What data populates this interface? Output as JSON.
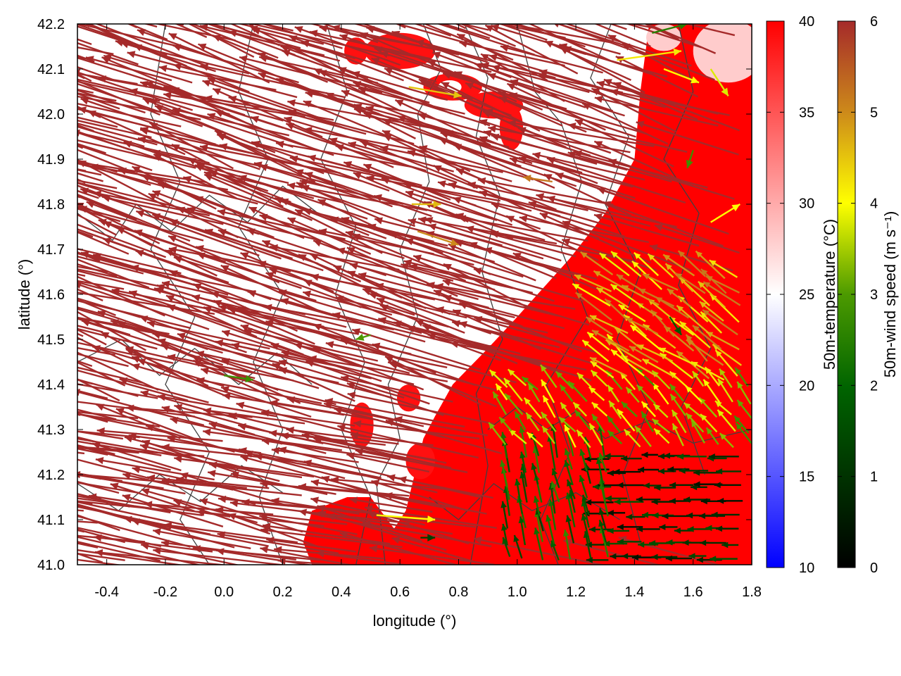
{
  "chart_data": {
    "type": "heatmap",
    "title": "",
    "xlabel": "longitude (°)",
    "ylabel": "latitude (°)",
    "xlim": [
      -0.5,
      1.8
    ],
    "ylim": [
      41.0,
      42.2
    ],
    "x_ticks": [
      "-0.4",
      "-0.2",
      "0.0",
      "0.2",
      "0.4",
      "0.6",
      "0.8",
      "1.0",
      "1.2",
      "1.4",
      "1.6",
      "1.8"
    ],
    "x_tick_values": [
      -0.4,
      -0.2,
      0.0,
      0.2,
      0.4,
      0.6,
      0.8,
      1.0,
      1.2,
      1.4,
      1.6,
      1.8
    ],
    "y_ticks": [
      "41.0",
      "41.1",
      "41.2",
      "41.3",
      "41.4",
      "41.5",
      "41.6",
      "41.7",
      "41.8",
      "41.9",
      "42.0",
      "42.1",
      "42.2"
    ],
    "y_tick_values": [
      41.0,
      41.1,
      41.2,
      41.3,
      41.4,
      41.5,
      41.6,
      41.7,
      41.8,
      41.9,
      42.0,
      42.1,
      42.2
    ],
    "grid": false,
    "temperature_colorbar": {
      "label": "50m-temperature (°C)",
      "range": [
        10,
        40
      ],
      "ticks": [
        "10",
        "15",
        "20",
        "25",
        "30",
        "35",
        "40"
      ],
      "tick_values": [
        10,
        15,
        20,
        25,
        30,
        35,
        40
      ],
      "colors": [
        "#0000ff",
        "#ffffff",
        "#ff0000"
      ]
    },
    "wind_colorbar": {
      "label": "50m-wind speed (m s⁻¹)",
      "range": [
        0,
        6
      ],
      "ticks": [
        "0",
        "1",
        "2",
        "3",
        "4",
        "5",
        "6"
      ],
      "tick_values": [
        0,
        1,
        2,
        3,
        4,
        5,
        6
      ],
      "colors": [
        "#000000",
        "#006400",
        "#ffff00",
        "#a52a2a"
      ]
    },
    "warm_region_polygon": [
      [
        1.8,
        41.0
      ],
      [
        1.8,
        42.2
      ],
      [
        1.45,
        42.2
      ],
      [
        1.42,
        42.05
      ],
      [
        1.4,
        41.9
      ],
      [
        1.3,
        41.78
      ],
      [
        1.18,
        41.68
      ],
      [
        1.0,
        41.55
      ],
      [
        0.9,
        41.48
      ],
      [
        0.78,
        41.4
      ],
      [
        0.72,
        41.33
      ],
      [
        0.68,
        41.28
      ],
      [
        0.65,
        41.2
      ],
      [
        0.62,
        41.12
      ],
      [
        0.58,
        41.08
      ],
      [
        0.5,
        41.15
      ],
      [
        0.42,
        41.15
      ],
      [
        0.3,
        41.12
      ],
      [
        0.27,
        41.05
      ],
      [
        0.3,
        41.0
      ]
    ],
    "warm_patches": [
      {
        "lon": 0.6,
        "lat": 42.14,
        "rlon": 0.12,
        "rlat": 0.04
      },
      {
        "lon": 0.78,
        "lat": 42.06,
        "rlon": 0.1,
        "rlat": 0.03
      },
      {
        "lon": 0.92,
        "lat": 42.02,
        "rlon": 0.1,
        "rlat": 0.03
      },
      {
        "lon": 0.98,
        "lat": 41.97,
        "rlon": 0.04,
        "rlat": 0.05
      },
      {
        "lon": 0.47,
        "lat": 41.31,
        "rlon": 0.04,
        "rlat": 0.05
      },
      {
        "lon": 0.63,
        "lat": 41.37,
        "rlon": 0.04,
        "rlat": 0.03
      },
      {
        "lon": 0.67,
        "lat": 41.23,
        "rlon": 0.05,
        "rlat": 0.04
      },
      {
        "lon": 0.45,
        "lat": 42.14,
        "rlon": 0.04,
        "rlat": 0.03
      }
    ],
    "hot_spots": [
      {
        "lon": 1.72,
        "lat": 42.14,
        "rlon": 0.12,
        "rlat": 0.07
      },
      {
        "lon": 1.5,
        "lat": 42.17,
        "rlon": 0.06,
        "rlat": 0.03
      }
    ],
    "cool_patch": {
      "lon": 0.77,
      "lat": 42.06,
      "rlon": 0.04,
      "rlat": 0.015
    },
    "wind_field": {
      "description_units": "arrow lengths in degrees; speed in m s-1",
      "westerly_regime_speed": 6,
      "land_breeze_regime": [
        {
          "lon_min": 1.3,
          "lon_max": 1.8,
          "lat_min": 41.0,
          "lat_max": 41.25,
          "u": -0.08,
          "v": 0.0,
          "speed": 1.0
        },
        {
          "lon_min": 0.95,
          "lon_max": 1.3,
          "lat_min": 41.0,
          "lat_max": 41.25,
          "u": -0.02,
          "v": 0.06,
          "speed": 2.0
        },
        {
          "lon_min": 0.95,
          "lon_max": 1.8,
          "lat_min": 41.25,
          "lat_max": 41.4,
          "u": -0.05,
          "v": 0.04,
          "speed": 3.5
        },
        {
          "lon_min": 1.3,
          "lon_max": 1.8,
          "lat_min": 41.4,
          "lat_max": 41.65,
          "u": -0.1,
          "v": 0.05,
          "speed": 4.5
        }
      ],
      "isolated_arrows": [
        {
          "lon": 0.0,
          "lat": 41.42,
          "u": 0.1,
          "v": -0.01,
          "speed": 2.8
        },
        {
          "lon": 0.5,
          "lat": 41.51,
          "u": -0.05,
          "v": -0.01,
          "speed": 3.0
        },
        {
          "lon": 0.67,
          "lat": 41.06,
          "u": 0.05,
          "v": 0.0,
          "speed": 1.3
        },
        {
          "lon": 0.52,
          "lat": 41.11,
          "u": 0.2,
          "v": -0.01,
          "speed": 4.0
        },
        {
          "lon": 0.66,
          "lat": 41.74,
          "u": 0.14,
          "v": -0.03,
          "speed": 5.0
        },
        {
          "lon": 0.64,
          "lat": 41.8,
          "u": 0.1,
          "v": 0.0,
          "speed": 4.6
        },
        {
          "lon": 0.63,
          "lat": 42.06,
          "u": 0.18,
          "v": -0.02,
          "speed": 4.5
        },
        {
          "lon": 1.34,
          "lat": 42.12,
          "u": 0.22,
          "v": 0.02,
          "speed": 4.2
        },
        {
          "lon": 1.5,
          "lat": 42.1,
          "u": 0.12,
          "v": -0.03,
          "speed": 4.0
        },
        {
          "lon": 1.66,
          "lat": 42.1,
          "u": 0.06,
          "v": -0.06,
          "speed": 3.8
        },
        {
          "lon": 1.46,
          "lat": 42.18,
          "u": 0.12,
          "v": 0.02,
          "speed": 2.5
        },
        {
          "lon": 1.66,
          "lat": 41.76,
          "u": 0.1,
          "v": 0.04,
          "speed": 4.0
        },
        {
          "lon": 1.6,
          "lat": 41.92,
          "u": -0.02,
          "v": -0.04,
          "speed": 2.8
        },
        {
          "lon": 1.12,
          "lat": 41.85,
          "u": -0.1,
          "v": 0.01,
          "speed": 5.2
        },
        {
          "lon": 1.52,
          "lat": 41.55,
          "u": 0.04,
          "v": -0.04,
          "speed": 1.8
        }
      ]
    },
    "contours": [
      [
        [
          -0.2,
          42.2
        ],
        [
          -0.25,
          42.0
        ],
        [
          -0.15,
          41.85
        ],
        [
          -0.25,
          41.7
        ],
        [
          -0.1,
          41.55
        ],
        [
          -0.2,
          41.4
        ],
        [
          -0.05,
          41.25
        ],
        [
          -0.15,
          41.1
        ],
        [
          -0.05,
          41.0
        ]
      ],
      [
        [
          0.1,
          42.2
        ],
        [
          0.05,
          42.05
        ],
        [
          0.15,
          41.9
        ],
        [
          0.05,
          41.75
        ],
        [
          0.2,
          41.6
        ],
        [
          0.1,
          41.45
        ],
        [
          0.2,
          41.3
        ],
        [
          0.12,
          41.15
        ],
        [
          0.2,
          41.0
        ]
      ],
      [
        [
          0.35,
          42.2
        ],
        [
          0.42,
          42.05
        ],
        [
          0.33,
          41.9
        ],
        [
          0.45,
          41.75
        ],
        [
          0.38,
          41.6
        ],
        [
          0.48,
          41.45
        ],
        [
          0.4,
          41.3
        ],
        [
          0.5,
          41.15
        ],
        [
          0.45,
          41.0
        ]
      ],
      [
        [
          0.68,
          42.2
        ],
        [
          0.74,
          42.1
        ],
        [
          0.66,
          42.0
        ],
        [
          0.7,
          41.85
        ],
        [
          0.6,
          41.7
        ],
        [
          0.66,
          41.55
        ],
        [
          0.56,
          41.4
        ],
        [
          0.6,
          41.28
        ],
        [
          0.52,
          41.18
        ],
        [
          0.55,
          41.0
        ]
      ],
      [
        [
          0.82,
          42.2
        ],
        [
          0.9,
          42.08
        ],
        [
          0.86,
          41.95
        ],
        [
          0.94,
          41.82
        ],
        [
          0.88,
          41.65
        ],
        [
          0.95,
          41.5
        ],
        [
          0.86,
          41.38
        ],
        [
          0.9,
          41.22
        ],
        [
          0.84,
          41.0
        ]
      ],
      [
        [
          1.0,
          42.2
        ],
        [
          1.06,
          42.05
        ],
        [
          1.15,
          41.98
        ],
        [
          1.22,
          41.85
        ],
        [
          1.15,
          41.7
        ],
        [
          1.24,
          41.55
        ],
        [
          1.1,
          41.4
        ],
        [
          1.18,
          41.25
        ],
        [
          1.08,
          41.1
        ],
        [
          1.14,
          41.0
        ]
      ],
      [
        [
          1.32,
          42.2
        ],
        [
          1.25,
          42.08
        ],
        [
          1.38,
          41.95
        ],
        [
          1.3,
          41.8
        ],
        [
          1.42,
          41.65
        ],
        [
          1.34,
          41.5
        ],
        [
          1.45,
          41.35
        ],
        [
          1.36,
          41.2
        ],
        [
          1.42,
          41.05
        ]
      ],
      [
        [
          1.55,
          42.2
        ],
        [
          1.6,
          42.05
        ],
        [
          1.5,
          41.9
        ],
        [
          1.62,
          41.78
        ],
        [
          1.55,
          41.62
        ],
        [
          1.66,
          41.48
        ],
        [
          1.56,
          41.35
        ],
        [
          1.64,
          41.2
        ]
      ],
      [
        [
          -0.5,
          41.78
        ],
        [
          -0.38,
          41.72
        ],
        [
          -0.3,
          41.8
        ],
        [
          -0.18,
          41.74
        ],
        [
          -0.05,
          41.82
        ],
        [
          0.08,
          41.76
        ],
        [
          0.2,
          41.84
        ],
        [
          0.32,
          41.78
        ]
      ],
      [
        [
          -0.5,
          41.45
        ],
        [
          -0.35,
          41.5
        ],
        [
          -0.22,
          41.42
        ],
        [
          -0.1,
          41.48
        ],
        [
          0.05,
          41.4
        ],
        [
          0.18,
          41.47
        ],
        [
          0.3,
          41.4
        ]
      ],
      [
        [
          -0.5,
          41.18
        ],
        [
          -0.36,
          41.12
        ],
        [
          -0.22,
          41.2
        ],
        [
          -0.08,
          41.14
        ],
        [
          0.06,
          41.22
        ],
        [
          0.2,
          41.16
        ]
      ],
      [
        [
          0.9,
          41.3
        ],
        [
          1.0,
          41.35
        ],
        [
          1.1,
          41.3
        ],
        [
          1.2,
          41.34
        ],
        [
          1.3,
          41.28
        ],
        [
          1.45,
          41.32
        ],
        [
          1.6,
          41.27
        ],
        [
          1.8,
          41.3
        ]
      ],
      [
        [
          0.7,
          41.15
        ],
        [
          0.8,
          41.1
        ],
        [
          0.92,
          41.18
        ],
        [
          1.05,
          41.12
        ],
        [
          1.2,
          41.16
        ],
        [
          1.35,
          41.1
        ]
      ]
    ]
  }
}
